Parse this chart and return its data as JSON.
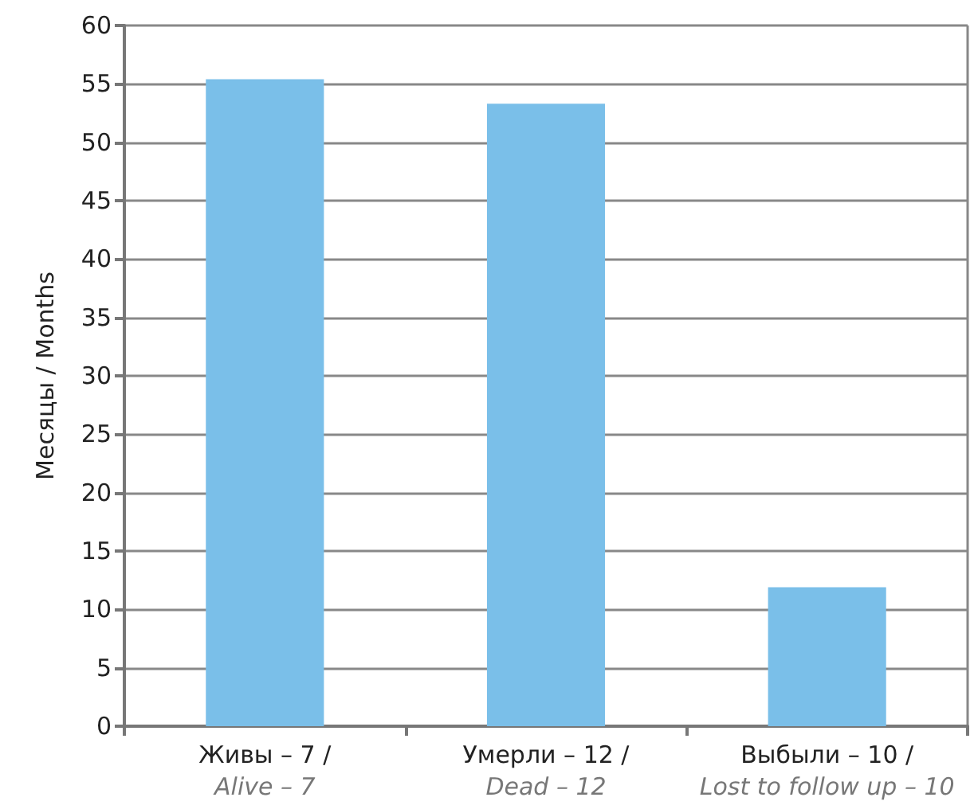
{
  "chart_data": {
    "type": "bar",
    "ylabel": "Месяцы / Months",
    "categories": [
      "Живы – 7 /\nAlive – 7",
      "Умерли – 12 /\nDead – 12",
      "Выбыли – 10 /\nLost to follow up – 10"
    ],
    "values": [
      55.4,
      53.3,
      11.9
    ],
    "color": "#7abfe9",
    "ylim": [
      0,
      60
    ],
    "yticks": [
      0,
      5,
      10,
      15,
      20,
      25,
      30,
      35,
      40,
      45,
      50,
      55,
      60
    ],
    "grid": "y"
  }
}
